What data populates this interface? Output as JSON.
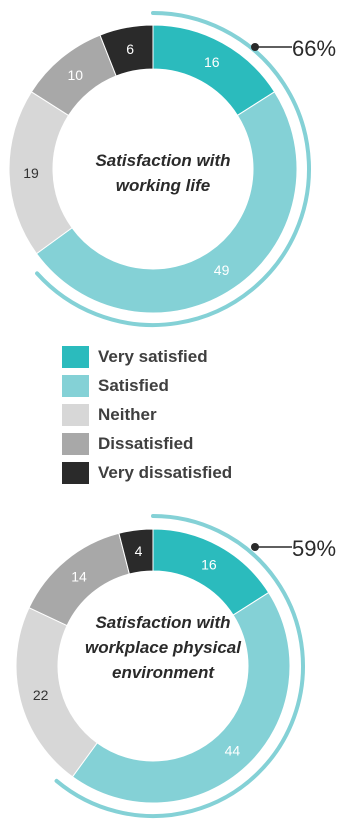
{
  "colors": {
    "very_satisfied": "#2bbbbd",
    "satisfied": "#84d1d6",
    "neither": "#d7d7d7",
    "dissatisfied": "#a8a8a8",
    "very_dissatisfied": "#2a2a2a",
    "outer_arc": "#84d1d6",
    "pointer_line": "#b0468f"
  },
  "legend": [
    {
      "label": "Very satisfied",
      "color": "#2bbbbd"
    },
    {
      "label": "Satisfied",
      "color": "#84d1d6"
    },
    {
      "label": "Neither",
      "color": "#d7d7d7"
    },
    {
      "label": "Dissatisfied",
      "color": "#a8a8a8"
    },
    {
      "label": "Very dissatisfied",
      "color": "#2a2a2a"
    }
  ],
  "chart_data": [
    {
      "type": "pie",
      "title_lines": [
        "Satisfaction with",
        "working life"
      ],
      "categories": [
        "Very satisfied",
        "Satisfied",
        "Neither",
        "Dissatisfied",
        "Very dissatisfied"
      ],
      "values": [
        16,
        49,
        19,
        10,
        6
      ],
      "value_labels": [
        "16",
        "49",
        "19",
        "10",
        "6"
      ],
      "highlight_label": "66%",
      "highlight_value": 66,
      "legend_position": "between charts"
    },
    {
      "type": "pie",
      "title_lines": [
        "Satisfaction with",
        "workplace physical",
        "environment"
      ],
      "categories": [
        "Very satisfied",
        "Satisfied",
        "Neither",
        "Dissatisfied",
        "Very dissatisfied"
      ],
      "values": [
        16,
        44,
        22,
        14,
        4
      ],
      "value_labels": [
        "16",
        "44",
        "22",
        "14",
        "4"
      ],
      "highlight_label": "59%",
      "highlight_value": 59,
      "legend_position": "between charts"
    }
  ]
}
